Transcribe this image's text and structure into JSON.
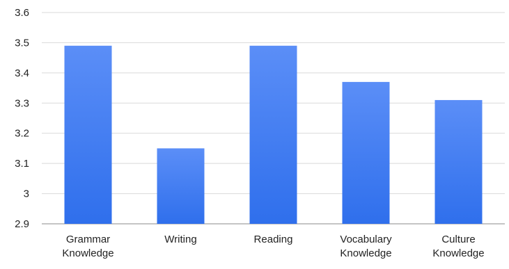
{
  "chart_data": {
    "type": "bar",
    "title": "",
    "xlabel": "",
    "ylabel": "",
    "categories": [
      [
        "Grammar",
        "Knowledge"
      ],
      [
        "Writing"
      ],
      [
        "Reading"
      ],
      [
        "Vocabulary",
        "Knowledge"
      ],
      [
        "Culture",
        "Knowledge"
      ]
    ],
    "values": [
      3.49,
      3.15,
      3.49,
      3.37,
      3.31
    ],
    "ylim": [
      2.9,
      3.6
    ],
    "yticks": [
      "2.9",
      "3",
      "3.1",
      "3.2",
      "3.3",
      "3.4",
      "3.5",
      "3.6"
    ],
    "grid": true,
    "legend": "none",
    "bar_color_top": "#5b8ef7",
    "bar_color_bottom": "#2f6fec"
  }
}
